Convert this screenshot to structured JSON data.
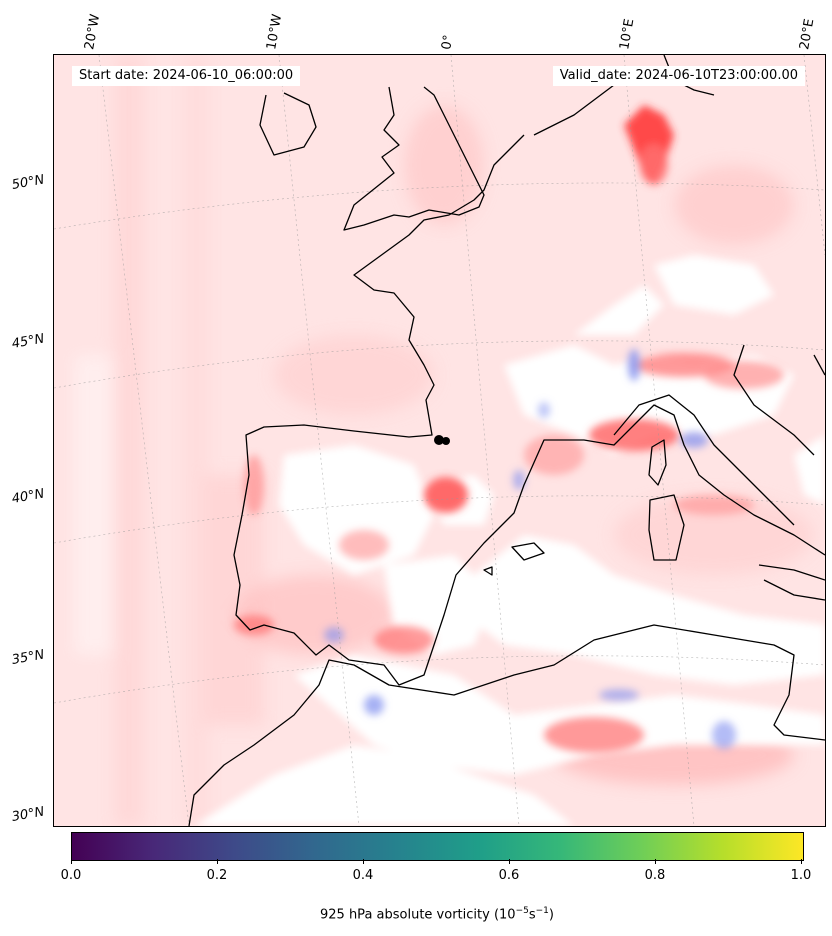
{
  "map": {
    "start_date": "Start date: 2024-06-10_06:00:00",
    "valid_date": "Valid_date: 2024-06-10T23:00:00.00",
    "lon_ticks": [
      "20°W",
      "10°W",
      "0°",
      "10°E",
      "20°E"
    ],
    "lat_ticks": [
      "50°N",
      "45°N",
      "40°N",
      "35°N",
      "30°N"
    ],
    "coastline_color": "#000000",
    "positive_color": "#ff0000",
    "negative_color": "#3a4cc0"
  },
  "colorbar": {
    "ticks": [
      "0.0",
      "0.2",
      "0.4",
      "0.6",
      "0.8",
      "1.0"
    ],
    "label": "925 hPa absolute vorticity (10",
    "label_exp1": "−5",
    "label_mid": "s",
    "label_exp2": "−1",
    "label_end": ")",
    "colormap": "viridis"
  }
}
